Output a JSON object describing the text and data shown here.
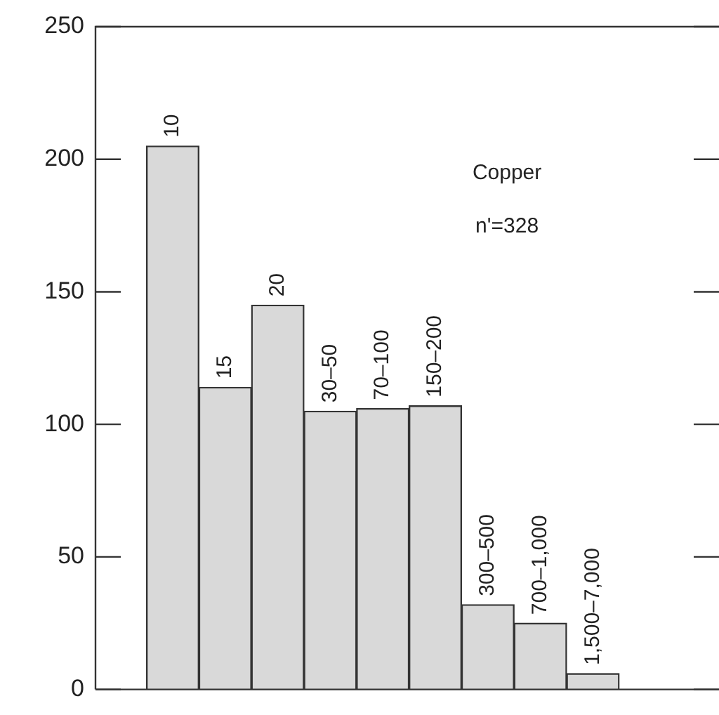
{
  "chart_data": {
    "type": "bar",
    "categories": [
      "10",
      "15",
      "20",
      "30–50",
      "70–100",
      "150–200",
      "300–500",
      "700–1,000",
      "1,500–7,000"
    ],
    "values": [
      205,
      114,
      145,
      105,
      106,
      107,
      32,
      25,
      6
    ],
    "color": "#d9d9d9",
    "ylim": [
      0,
      250
    ],
    "yticks": [
      0,
      50,
      100,
      150,
      200,
      250
    ],
    "grid": false,
    "legend": false,
    "annotations": [
      {
        "text": "Copper"
      },
      {
        "text": "n'=328"
      }
    ]
  }
}
